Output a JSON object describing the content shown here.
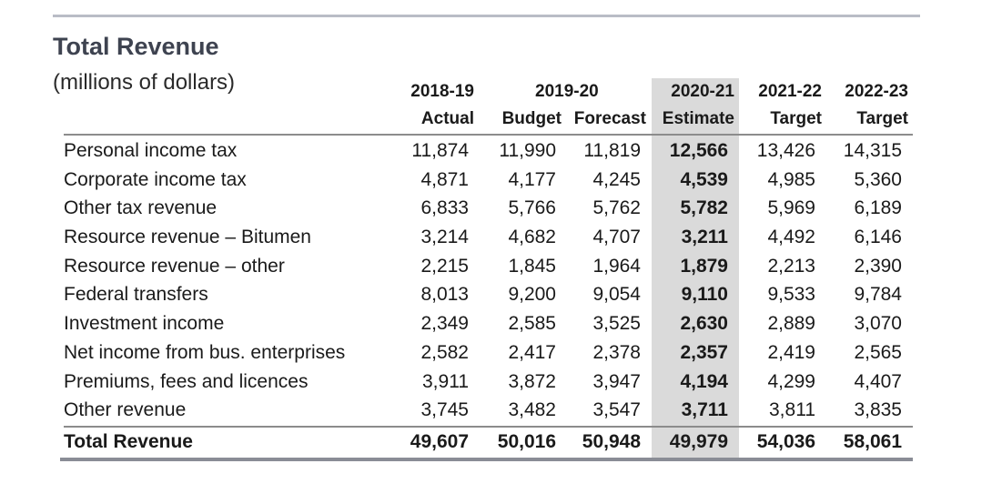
{
  "title": "Total Revenue",
  "subtitle": "(millions of dollars)",
  "years": [
    "2018-19",
    "2019-20",
    "2020-21",
    "2021-22",
    "2022-23"
  ],
  "columns": [
    "Actual",
    "Budget",
    "Forecast",
    "Estimate",
    "Target",
    "Target"
  ],
  "highlight_color": "#dadada",
  "rows": [
    {
      "label": "Personal income tax",
      "values": [
        "11,874",
        "11,990",
        "11,819",
        "12,566",
        "13,426",
        "14,315"
      ]
    },
    {
      "label": "Corporate income tax",
      "values": [
        "4,871",
        "4,177",
        "4,245",
        "4,539",
        "4,985",
        "5,360"
      ]
    },
    {
      "label": "Other tax revenue",
      "values": [
        "6,833",
        "5,766",
        "5,762",
        "5,782",
        "5,969",
        "6,189"
      ]
    },
    {
      "label": "Resource revenue – Bitumen",
      "values": [
        "3,214",
        "4,682",
        "4,707",
        "3,211",
        "4,492",
        "6,146"
      ]
    },
    {
      "label": "Resource revenue – other",
      "values": [
        "2,215",
        "1,845",
        "1,964",
        "1,879",
        "2,213",
        "2,390"
      ]
    },
    {
      "label": "Federal transfers",
      "values": [
        "8,013",
        "9,200",
        "9,054",
        "9,110",
        "9,533",
        "9,784"
      ]
    },
    {
      "label": "Investment income",
      "values": [
        "2,349",
        "2,585",
        "3,525",
        "2,630",
        "2,889",
        "3,070"
      ]
    },
    {
      "label": "Net income from bus. enterprises",
      "values": [
        "2,582",
        "2,417",
        "2,378",
        "2,357",
        "2,419",
        "2,565"
      ]
    },
    {
      "label": "Premiums, fees and licences",
      "values": [
        "3,911",
        "3,872",
        "3,947",
        "4,194",
        "4,299",
        "4,407"
      ]
    },
    {
      "label": "Other revenue",
      "values": [
        "3,745",
        "3,482",
        "3,547",
        "3,711",
        "3,811",
        "3,835"
      ]
    }
  ],
  "total": {
    "label": "Total Revenue",
    "values": [
      "49,607",
      "50,016",
      "50,948",
      "49,979",
      "54,036",
      "58,061"
    ]
  }
}
